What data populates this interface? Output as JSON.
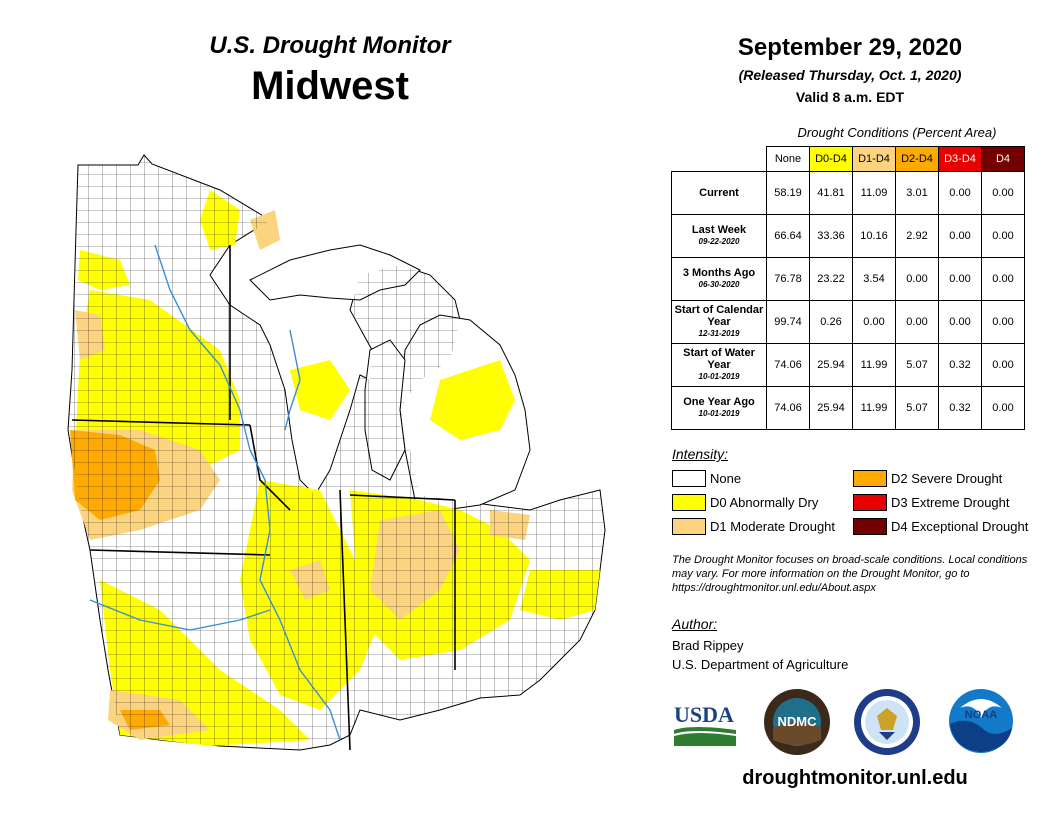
{
  "header": {
    "title": "U.S. Drought Monitor",
    "region": "Midwest",
    "date": "September 29, 2020",
    "released": "(Released Thursday, Oct. 1, 2020)",
    "valid": "Valid 8 a.m. EDT"
  },
  "conditions": {
    "caption": "Drought Conditions (Percent Area)",
    "columns": [
      "None",
      "D0-D4",
      "D1-D4",
      "D2-D4",
      "D3-D4",
      "D4"
    ],
    "column_colors": [
      "#ffffff",
      "#ffff00",
      "#fcd37f",
      "#ffaa00",
      "#e60000",
      "#730000"
    ],
    "rows": [
      {
        "label": "Current",
        "sub": "",
        "values": [
          "58.19",
          "41.81",
          "11.09",
          "3.01",
          "0.00",
          "0.00"
        ]
      },
      {
        "label": "Last Week",
        "sub": "09-22-2020",
        "values": [
          "66.64",
          "33.36",
          "10.16",
          "2.92",
          "0.00",
          "0.00"
        ]
      },
      {
        "label": "3 Months Ago",
        "sub": "06-30-2020",
        "values": [
          "76.78",
          "23.22",
          "3.54",
          "0.00",
          "0.00",
          "0.00"
        ]
      },
      {
        "label": "Start of Calendar Year",
        "sub": "12-31-2019",
        "values": [
          "99.74",
          "0.26",
          "0.00",
          "0.00",
          "0.00",
          "0.00"
        ]
      },
      {
        "label": "Start of Water Year",
        "sub": "10-01-2019",
        "values": [
          "74.06",
          "25.94",
          "11.99",
          "5.07",
          "0.32",
          "0.00"
        ]
      },
      {
        "label": "One Year Ago",
        "sub": "10-01-2019",
        "values": [
          "74.06",
          "25.94",
          "11.99",
          "5.07",
          "0.32",
          "0.00"
        ]
      }
    ]
  },
  "legend": {
    "title": "Intensity:",
    "items": [
      {
        "label": "None",
        "color": "#ffffff"
      },
      {
        "label": "D0 Abnormally Dry",
        "color": "#ffff00"
      },
      {
        "label": "D1 Moderate Drought",
        "color": "#fcd37f"
      },
      {
        "label": "D2 Severe Drought",
        "color": "#ffaa00"
      },
      {
        "label": "D3 Extreme Drought",
        "color": "#e60000"
      },
      {
        "label": "D4 Exceptional Drought",
        "color": "#730000"
      }
    ]
  },
  "note": "The Drought Monitor focuses on broad-scale conditions. Local conditions may vary. For more information on the Drought Monitor, go to https://droughtmonitor.unl.edu/About.aspx",
  "author": {
    "title": "Author:",
    "name": "Brad Rippey",
    "org": "U.S. Department of Agriculture"
  },
  "logos": {
    "usda": "USDA",
    "ndmc": "NDMC",
    "noaa": "NOAA"
  },
  "website": "droughtmonitor.unl.edu"
}
